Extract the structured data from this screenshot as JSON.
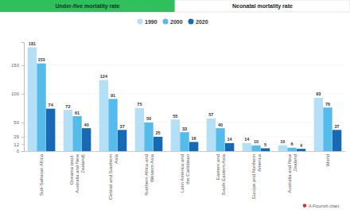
{
  "tabs": [
    "Under-five mortality rate",
    "Neonatal mortality rate"
  ],
  "footer": "A Flourish chart",
  "chart_data": {
    "type": "bar",
    "categories": [
      "Sub-Saharan Africa",
      "Oceania (excl. Australia and New Zealand)",
      "Central and Southern Asia",
      "Northern Africa and Western Asia",
      "Latin America and the Caribbean",
      "Eastern and South-Eastern Asia",
      "Europe and Northern America",
      "Australia and New Zealand",
      "World"
    ],
    "series": [
      {
        "name": "1990",
        "color": "#b3e0f6",
        "values": [
          181,
          72,
          124,
          75,
          55,
          57,
          14,
          10,
          93
        ]
      },
      {
        "name": "2000",
        "color": "#55bbeb",
        "values": [
          153,
          61,
          91,
          50,
          33,
          40,
          10,
          6,
          76
        ]
      },
      {
        "name": "2020",
        "color": "#1769b3",
        "values": [
          74,
          40,
          37,
          25,
          16,
          14,
          5,
          4,
          37
        ]
      }
    ],
    "ylim": [
      0,
      190
    ],
    "yticks": [
      0,
      12,
      25,
      50,
      100,
      150
    ],
    "grid": true,
    "legend": "top",
    "data_labels": true
  }
}
